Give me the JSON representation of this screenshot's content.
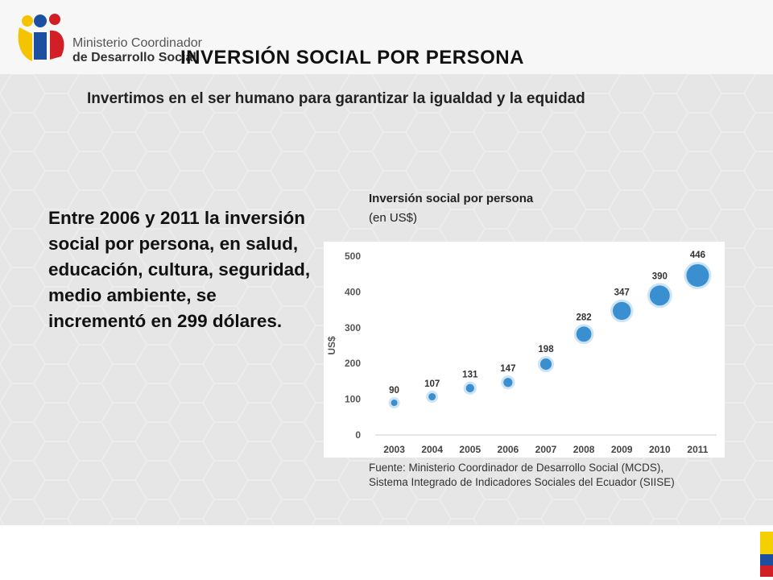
{
  "header": {
    "org_line1": "Ministerio Coordinador",
    "org_line2": "de Desarrollo Social",
    "title": "INVERSIÓN SOCIAL POR PERSONA",
    "subtitle": "Invertimos en el ser humano para garantizar la igualdad y la equidad"
  },
  "body": {
    "text": "Entre 2006 y 2011 la inversión social por persona, en salud, educación, cultura, seguridad, medio ambiente, se incrementó en 299 dólares."
  },
  "chart_caption": {
    "title": "Inversión social por persona",
    "unit": "(en US$)"
  },
  "chart_data": {
    "type": "scatter",
    "categories": [
      "2003",
      "2004",
      "2005",
      "2006",
      "2007",
      "2008",
      "2009",
      "2010",
      "2011"
    ],
    "values": [
      90,
      107,
      131,
      147,
      198,
      282,
      347,
      390,
      446
    ],
    "value_labels": [
      "90",
      "107",
      "131",
      "147",
      "198",
      "282",
      "347",
      "390",
      "446"
    ],
    "ylabel": "US$",
    "ylim": [
      0,
      500
    ],
    "yticks": [
      0,
      100,
      200,
      300,
      400,
      500
    ],
    "grid": false,
    "point_color": "#3a8fd1"
  },
  "source": {
    "line1": "Fuente: Ministerio Coordinador de Desarrollo Social (MCDS),",
    "line2": "Sistema Integrado de Indicadores Sociales del Ecuador (SIISE)"
  },
  "colors": {
    "flag_yellow": "#f5d000",
    "flag_blue": "#1d4fa0",
    "flag_red": "#d21f26"
  }
}
